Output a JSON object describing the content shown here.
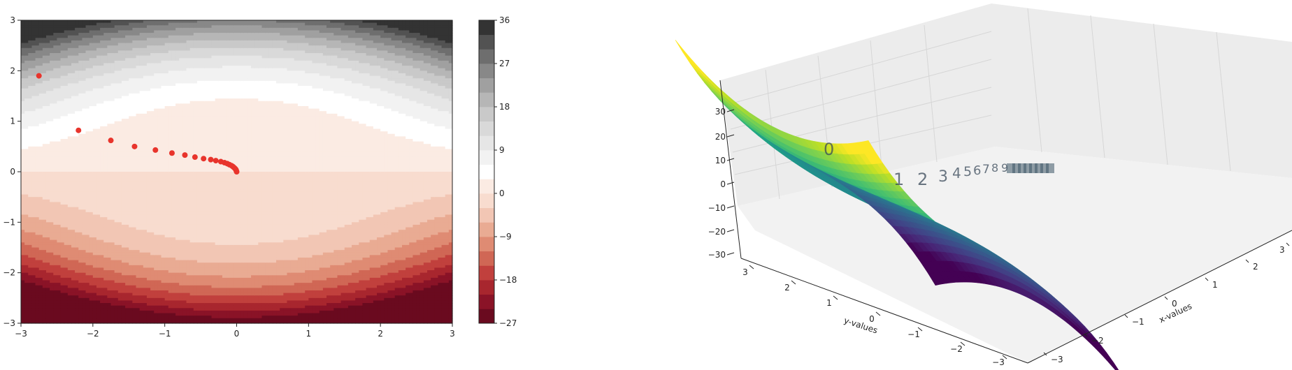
{
  "chart_data": [
    {
      "type": "contour",
      "title": "",
      "xlabel": "",
      "ylabel": "",
      "xlim": [
        -3,
        3
      ],
      "ylim": [
        -3,
        3
      ],
      "xticks": [
        "−3",
        "−2",
        "−1",
        "0",
        "1",
        "2",
        "3"
      ],
      "yticks": [
        "−3",
        "−2",
        "−1",
        "0",
        "1",
        "2",
        "3"
      ],
      "colorbar": {
        "range": [
          -27,
          36
        ],
        "ticks": [
          "−27",
          "−18",
          "−9",
          "0",
          "9",
          "18",
          "27",
          "36"
        ],
        "levels": [
          -27,
          -24,
          -21,
          -18,
          -15,
          -12,
          -9,
          -6,
          -3,
          0,
          3,
          6,
          9,
          12,
          15,
          18,
          21,
          24,
          27,
          30,
          33,
          36
        ],
        "colormap": "RdGy"
      },
      "points_color": "#e8342c",
      "points": [
        [
          -2.75,
          1.9
        ],
        [
          -2.2,
          0.82
        ],
        [
          -1.75,
          0.62
        ],
        [
          -1.42,
          0.5
        ],
        [
          -1.13,
          0.43
        ],
        [
          -0.9,
          0.37
        ],
        [
          -0.72,
          0.33
        ],
        [
          -0.58,
          0.29
        ],
        [
          -0.46,
          0.26
        ],
        [
          -0.36,
          0.24
        ],
        [
          -0.29,
          0.22
        ],
        [
          -0.22,
          0.2
        ],
        [
          -0.17,
          0.18
        ],
        [
          -0.13,
          0.16
        ],
        [
          -0.1,
          0.14
        ],
        [
          -0.07,
          0.12
        ],
        [
          -0.05,
          0.1
        ],
        [
          -0.035,
          0.08
        ],
        [
          -0.02,
          0.06
        ],
        [
          -0.01,
          0.04
        ],
        [
          -0.005,
          0.02
        ],
        [
          0,
          0.0
        ]
      ]
    },
    {
      "type": "surface3d",
      "title": "",
      "xlabel": "x-values",
      "ylabel": "y-values",
      "zlabel": "",
      "xticks": [
        "−3",
        "−2",
        "−1",
        "0",
        "1",
        "2",
        "3"
      ],
      "yticks": [
        "−3",
        "−2",
        "−1",
        "0",
        "1",
        "2",
        "3"
      ],
      "zticks": [
        "−30",
        "−20",
        "−10",
        "0",
        "10",
        "20",
        "30"
      ],
      "zlim": [
        -30,
        36
      ],
      "colormap": "viridis",
      "annotations": [
        "0",
        "1",
        "2",
        "3",
        "4",
        "5",
        "6",
        "7",
        "8",
        "9"
      ]
    }
  ]
}
